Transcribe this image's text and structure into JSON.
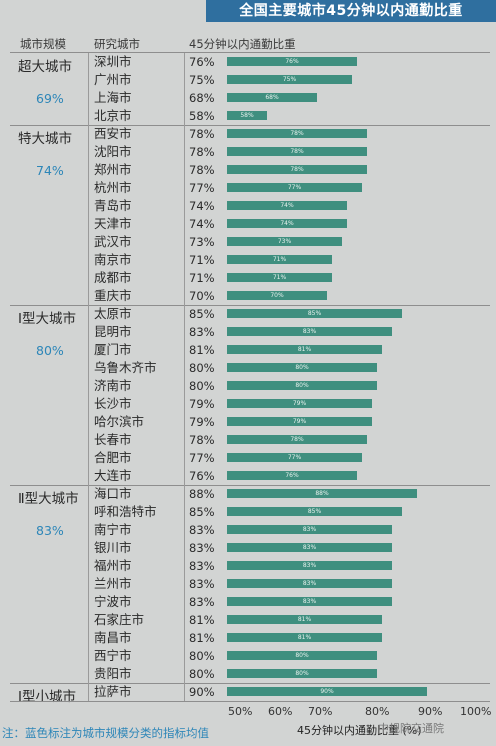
{
  "banner": "全国主要城市45分钟以内通勤比重",
  "headers": {
    "category": "城市规模",
    "city": "研究城市",
    "value": "45分钟以内通勤比重"
  },
  "chart_data": {
    "type": "bar",
    "orientation": "horizontal",
    "title": "全国主要城市45分钟以内通勤比重",
    "xlabel": "45分钟以内通勤比重",
    "xlabel_unit": "(%)",
    "xlim": [
      50,
      100
    ],
    "xticks": [
      "50%",
      "60%",
      "70%",
      "80%",
      "90%",
      "100%"
    ],
    "groups": [
      {
        "name": "超大城市",
        "avg": "69%",
        "cities": [
          {
            "city": "深圳市",
            "value": 76,
            "label": "76%"
          },
          {
            "city": "广州市",
            "value": 75,
            "label": "75%"
          },
          {
            "city": "上海市",
            "value": 68,
            "label": "68%"
          },
          {
            "city": "北京市",
            "value": 58,
            "label": "58%"
          }
        ]
      },
      {
        "name": "特大城市",
        "avg": "74%",
        "cities": [
          {
            "city": "西安市",
            "value": 78,
            "label": "78%"
          },
          {
            "city": "沈阳市",
            "value": 78,
            "label": "78%"
          },
          {
            "city": "郑州市",
            "value": 78,
            "label": "78%"
          },
          {
            "city": "杭州市",
            "value": 77,
            "label": "77%"
          },
          {
            "city": "青岛市",
            "value": 74,
            "label": "74%"
          },
          {
            "city": "天津市",
            "value": 74,
            "label": "74%"
          },
          {
            "city": "武汉市",
            "value": 73,
            "label": "73%"
          },
          {
            "city": "南京市",
            "value": 71,
            "label": "71%"
          },
          {
            "city": "成都市",
            "value": 71,
            "label": "71%"
          },
          {
            "city": "重庆市",
            "value": 70,
            "label": "70%"
          }
        ]
      },
      {
        "name": "Ⅰ型大城市",
        "avg": "80%",
        "cities": [
          {
            "city": "太原市",
            "value": 85,
            "label": "85%"
          },
          {
            "city": "昆明市",
            "value": 83,
            "label": "83%"
          },
          {
            "city": "厦门市",
            "value": 81,
            "label": "81%"
          },
          {
            "city": "乌鲁木齐市",
            "value": 80,
            "label": "80%"
          },
          {
            "city": "济南市",
            "value": 80,
            "label": "80%"
          },
          {
            "city": "长沙市",
            "value": 79,
            "label": "79%"
          },
          {
            "city": "哈尔滨市",
            "value": 79,
            "label": "79%"
          },
          {
            "city": "长春市",
            "value": 78,
            "label": "78%"
          },
          {
            "city": "合肥市",
            "value": 77,
            "label": "77%"
          },
          {
            "city": "大连市",
            "value": 76,
            "label": "76%"
          }
        ]
      },
      {
        "name": "Ⅱ型大城市",
        "avg": "83%",
        "cities": [
          {
            "city": "海口市",
            "value": 88,
            "label": "88%"
          },
          {
            "city": "呼和浩特市",
            "value": 85,
            "label": "85%"
          },
          {
            "city": "南宁市",
            "value": 83,
            "label": "83%"
          },
          {
            "city": "银川市",
            "value": 83,
            "label": "83%"
          },
          {
            "city": "福州市",
            "value": 83,
            "label": "83%"
          },
          {
            "city": "兰州市",
            "value": 83,
            "label": "83%"
          },
          {
            "city": "宁波市",
            "value": 83,
            "label": "83%"
          },
          {
            "city": "石家庄市",
            "value": 81,
            "label": "81%"
          },
          {
            "city": "南昌市",
            "value": 81,
            "label": "81%"
          },
          {
            "city": "西宁市",
            "value": 80,
            "label": "80%"
          },
          {
            "city": "贵阳市",
            "value": 80,
            "label": "80%"
          }
        ]
      },
      {
        "name": "Ⅰ型小城市",
        "avg": "",
        "cities": [
          {
            "city": "拉萨市",
            "value": 90,
            "label": "90%"
          }
        ]
      }
    ]
  },
  "note": "注：蓝色标注为城市规模分类的指标均值",
  "watermark": "中规院交通院",
  "colors": {
    "bar": "#3f8f7f",
    "banner": "#2f6f9f",
    "avg": "#2d86b8"
  }
}
